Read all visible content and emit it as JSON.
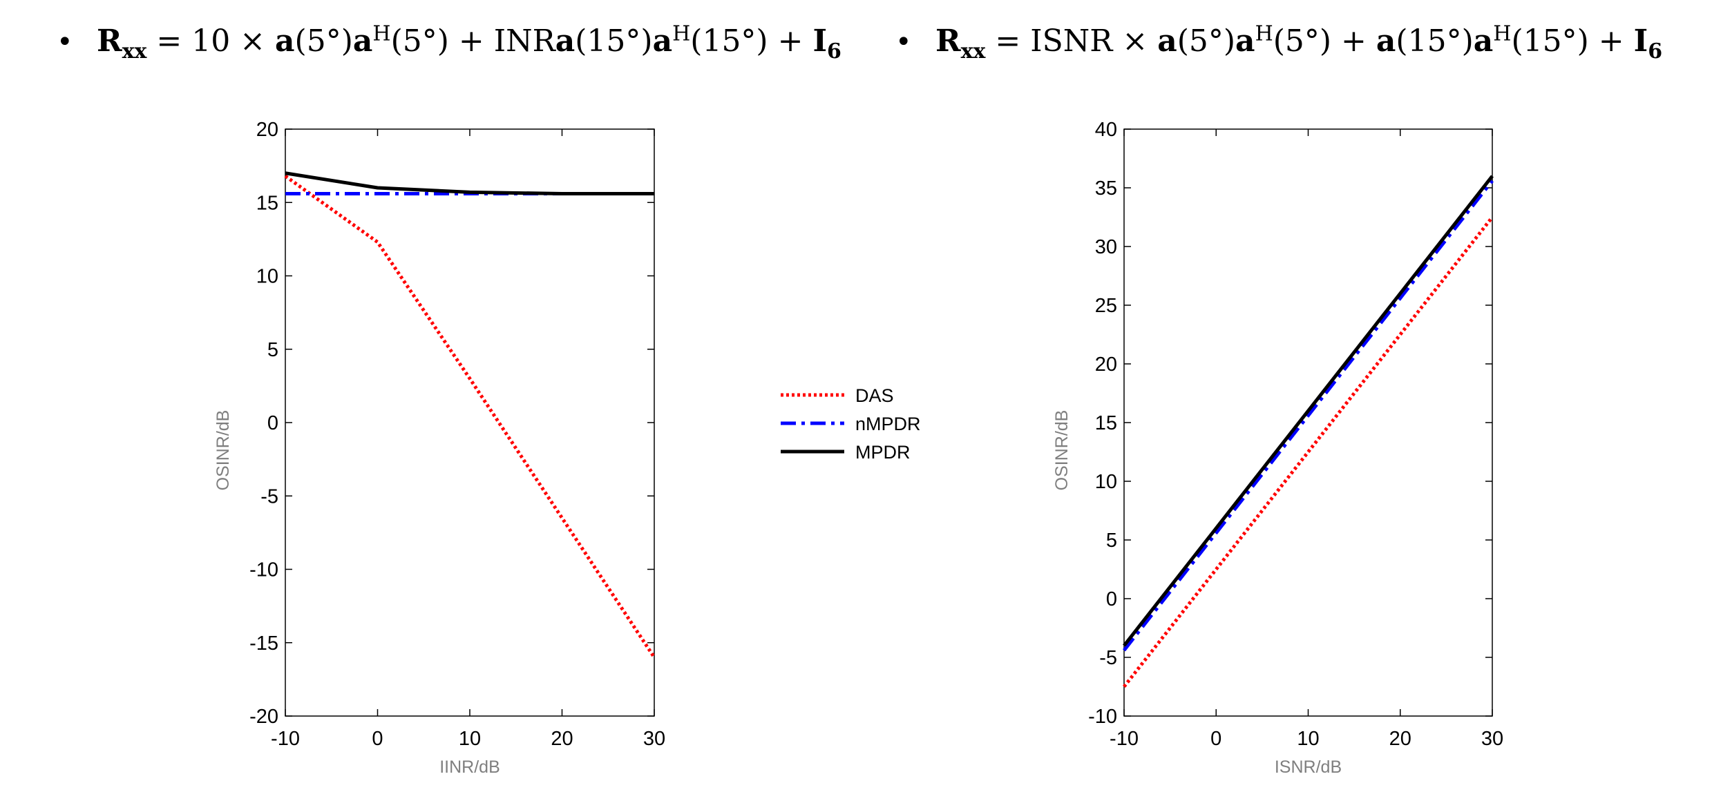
{
  "formulas": {
    "left": {
      "bullet": "•",
      "lhs": "R",
      "lhs_sub": "xx",
      "eq": " = 10 × ",
      "a1": "a",
      "arg1": "(5°)",
      "a2": "a",
      "sup1": "H",
      "arg2": "(5°) + INR",
      "a3": "a",
      "arg3": "(15°)",
      "a4": "a",
      "sup2": "H",
      "arg4": "(15°) + ",
      "I": "I",
      "I_sub": "6"
    },
    "right": {
      "bullet": "•",
      "lhs": "R",
      "lhs_sub": "xx",
      "eq": " = ISNR × ",
      "a1": "a",
      "arg1": "(5°)",
      "a2": "a",
      "sup1": "H",
      "arg2": "(5°) + ",
      "a3": "a",
      "arg3": "(15°)",
      "a4": "a",
      "sup2": "H",
      "arg4": "(15°) + ",
      "I": "I",
      "I_sub": "6"
    }
  },
  "legend": [
    {
      "name": "DAS",
      "color": "#ff0000",
      "style": "dotted"
    },
    {
      "name": "nMPDR",
      "color": "#0000ff",
      "style": "dash-dot"
    },
    {
      "name": "MPDR",
      "color": "#000000",
      "style": "solid"
    }
  ],
  "chart_data": [
    {
      "type": "line",
      "xlabel": "IINR/dB",
      "ylabel": "OSINR/dB",
      "xlim": [
        -10,
        30
      ],
      "ylim": [
        -20,
        20
      ],
      "xticks": [
        "-10",
        "0",
        "10",
        "20",
        "30"
      ],
      "yticks": [
        "-20",
        "-15",
        "-10",
        "-5",
        "0",
        "5",
        "10",
        "15",
        "20"
      ],
      "x": [
        -10,
        0,
        10,
        20,
        30
      ],
      "series": [
        {
          "name": "DAS",
          "color": "#ff0000",
          "style": "dotted",
          "values": [
            16.8,
            12.3,
            3.0,
            -6.5,
            -16.0
          ]
        },
        {
          "name": "nMPDR",
          "color": "#0000ff",
          "style": "dash-dot",
          "values": [
            15.6,
            15.6,
            15.6,
            15.6,
            15.6
          ]
        },
        {
          "name": "MPDR",
          "color": "#000000",
          "style": "solid",
          "values": [
            17.0,
            16.0,
            15.7,
            15.6,
            15.6
          ]
        }
      ],
      "grid": false
    },
    {
      "type": "line",
      "xlabel": "ISNR/dB",
      "ylabel": "OSINR/dB",
      "xlim": [
        -10,
        30
      ],
      "ylim": [
        -10,
        40
      ],
      "xticks": [
        "-10",
        "0",
        "10",
        "20",
        "30"
      ],
      "yticks": [
        "-10",
        "-5",
        "0",
        "5",
        "10",
        "15",
        "20",
        "25",
        "30",
        "35",
        "40"
      ],
      "x": [
        -10,
        0,
        10,
        20,
        30
      ],
      "series": [
        {
          "name": "DAS",
          "color": "#ff0000",
          "style": "dotted",
          "values": [
            -7.5,
            2.5,
            12.5,
            22.5,
            32.5
          ]
        },
        {
          "name": "nMPDR",
          "color": "#0000ff",
          "style": "dash-dot",
          "values": [
            -4.4,
            5.6,
            15.6,
            25.6,
            35.6
          ]
        },
        {
          "name": "MPDR",
          "color": "#000000",
          "style": "solid",
          "values": [
            -4.0,
            6.0,
            16.0,
            26.0,
            36.0
          ]
        }
      ],
      "grid": false
    }
  ]
}
